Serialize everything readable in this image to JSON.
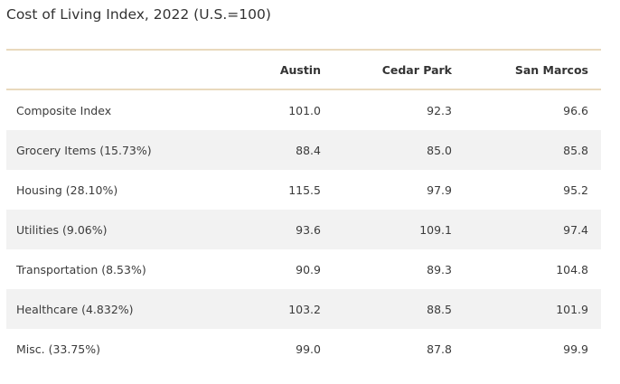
{
  "title": "Cost of Living Index, 2022 (U.S.=100)",
  "columns": [
    "",
    "Austin",
    "Cedar Park",
    "San Marcos"
  ],
  "rows": [
    {
      "label": "Composite Index",
      "values": [
        "101.0",
        "92.3",
        "96.6"
      ]
    },
    {
      "label": "Grocery Items (15.73%)",
      "values": [
        "88.4",
        "85.0",
        "85.8"
      ]
    },
    {
      "label": "Housing (28.10%)",
      "values": [
        "115.5",
        "97.9",
        "95.2"
      ]
    },
    {
      "label": "Utilities (9.06%)",
      "values": [
        "93.6",
        "109.1",
        "97.4"
      ]
    },
    {
      "label": "Transportation (8.53%)",
      "values": [
        "90.9",
        "89.3",
        "104.8"
      ]
    },
    {
      "label": "Healthcare (4.832%)",
      "values": [
        "103.2",
        "88.5",
        "101.9"
      ]
    },
    {
      "label": "Misc. (33.75%)",
      "values": [
        "99.0",
        "87.8",
        "99.9"
      ]
    }
  ],
  "colors": {
    "rule": "#e9d9bd",
    "shaded_row": "#f2f2f2",
    "text": "#333333"
  }
}
